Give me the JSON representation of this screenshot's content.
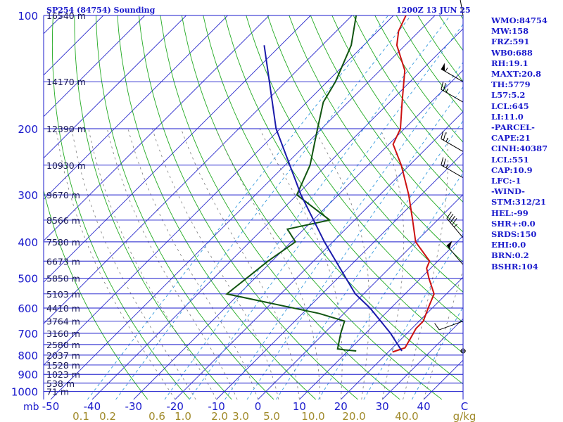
{
  "header": {
    "station": "SP254 (84754) Sounding",
    "time": "1200Z 13 JUN 25"
  },
  "indices": [
    "WMO:84754",
    "MW:158",
    "FRZ:591",
    "WB0:688",
    "RH:19.1",
    "MAXT:20.8",
    "TH:5779",
    "L57:5.2",
    "LCL:645",
    "LI:11.0",
    "-PARCEL-",
    "CAPE:21",
    "CINH:40387",
    "LCL:551",
    "CAP:10.9",
    "LFC:-1",
    "-WIND-",
    "STM:312/21",
    "HEL:-99",
    "SHR+:0.0",
    "SRDS:150",
    "EHI:0.0",
    "BRN:0.2",
    "BSHR:104"
  ],
  "colors": {
    "axis": "#1a1acc",
    "isobar": "#1a1acc",
    "isotherm": "#2a2acc",
    "dry_adiabat": "#22aa22",
    "moist_adiabat": "#7a7a7a",
    "mixing_ratio": "#3399dd",
    "temperature": "#cc1111",
    "dewpoint": "#115511",
    "parcel": "#1a1aaa",
    "mixing_label": "#a08a2a",
    "wind": "#000000"
  },
  "chart_data": {
    "type": "skew-t",
    "pressure_unit": "mb",
    "pressure_levels": [
      100,
      200,
      300,
      400,
      500,
      600,
      700,
      800,
      900,
      1000
    ],
    "height_labels": [
      {
        "p": 100,
        "text": "16540 m"
      },
      {
        "p": 150,
        "text": "14170 m"
      },
      {
        "p": 200,
        "text": "12390 m"
      },
      {
        "p": 250,
        "text": "10930 m"
      },
      {
        "p": 300,
        "text": "9670 m"
      },
      {
        "p": 350,
        "text": "8566 m"
      },
      {
        "p": 400,
        "text": "7580 m"
      },
      {
        "p": 450,
        "text": "6673 m"
      },
      {
        "p": 500,
        "text": "5850 m"
      },
      {
        "p": 550,
        "text": "5103 m"
      },
      {
        "p": 600,
        "text": "4410 m"
      },
      {
        "p": 650,
        "text": "3764 m"
      },
      {
        "p": 700,
        "text": "3160 m"
      },
      {
        "p": 750,
        "text": "2580 m"
      },
      {
        "p": 800,
        "text": "2037 m"
      },
      {
        "p": 850,
        "text": "1528 m"
      },
      {
        "p": 900,
        "text": "1023 m"
      },
      {
        "p": 950,
        "text": "538 m"
      },
      {
        "p": 1000,
        "text": "71 m"
      }
    ],
    "temperature_ticks": [
      -50,
      -40,
      -30,
      -20,
      -10,
      0,
      10,
      20,
      30,
      40
    ],
    "temperature_unit": "C",
    "mixing_ratio_ticks": [
      "0.1",
      "0.2",
      "0.6",
      "1.0",
      "2.0",
      "3.0",
      "5.0",
      "10.0",
      "20.0",
      "40.0"
    ],
    "mixing_ratio_unit": "g/kg",
    "temperature_profile": [
      {
        "p": 785,
        "t": 21
      },
      {
        "p": 765,
        "t": 23
      },
      {
        "p": 720,
        "t": 22
      },
      {
        "p": 680,
        "t": 21
      },
      {
        "p": 650,
        "t": 21
      },
      {
        "p": 600,
        "t": 19
      },
      {
        "p": 550,
        "t": 17
      },
      {
        "p": 500,
        "t": 12
      },
      {
        "p": 470,
        "t": 9
      },
      {
        "p": 450,
        "t": 8
      },
      {
        "p": 400,
        "t": 0
      },
      {
        "p": 350,
        "t": -6
      },
      {
        "p": 300,
        "t": -13
      },
      {
        "p": 250,
        "t": -22
      },
      {
        "p": 220,
        "t": -29
      },
      {
        "p": 200,
        "t": -31
      },
      {
        "p": 170,
        "t": -37
      },
      {
        "p": 140,
        "t": -44
      },
      {
        "p": 120,
        "t": -52
      },
      {
        "p": 110,
        "t": -55
      },
      {
        "p": 100,
        "t": -57
      }
    ],
    "dewpoint_profile": [
      {
        "p": 780,
        "td": 12
      },
      {
        "p": 775,
        "td": 9
      },
      {
        "p": 770,
        "td": 7
      },
      {
        "p": 700,
        "td": 4
      },
      {
        "p": 650,
        "td": 2
      },
      {
        "p": 620,
        "td": -6
      },
      {
        "p": 550,
        "td": -33
      },
      {
        "p": 500,
        "td": -32
      },
      {
        "p": 450,
        "td": -31
      },
      {
        "p": 400,
        "td": -29
      },
      {
        "p": 370,
        "td": -34
      },
      {
        "p": 350,
        "td": -26
      },
      {
        "p": 300,
        "td": -40
      },
      {
        "p": 250,
        "td": -44
      },
      {
        "p": 200,
        "td": -51
      },
      {
        "p": 170,
        "td": -56
      },
      {
        "p": 150,
        "td": -58
      },
      {
        "p": 120,
        "td": -63
      },
      {
        "p": 100,
        "td": -69
      }
    ],
    "parcel_profile": [
      {
        "p": 780,
        "t": 23
      },
      {
        "p": 700,
        "t": 16
      },
      {
        "p": 600,
        "t": 5
      },
      {
        "p": 550,
        "t": -2
      },
      {
        "p": 500,
        "t": -8
      },
      {
        "p": 400,
        "t": -22
      },
      {
        "p": 300,
        "t": -39
      },
      {
        "p": 200,
        "t": -61
      },
      {
        "p": 120,
        "t": -84
      }
    ],
    "wind_barbs": [
      {
        "p": 780,
        "dir": 90,
        "speed": 0
      },
      {
        "p": 650,
        "dir": 250,
        "speed": 10
      },
      {
        "p": 460,
        "dir": 320,
        "speed": 50
      },
      {
        "p": 390,
        "dir": 320,
        "speed": 45
      },
      {
        "p": 270,
        "dir": 300,
        "speed": 25
      },
      {
        "p": 230,
        "dir": 300,
        "speed": 25
      },
      {
        "p": 170,
        "dir": 300,
        "speed": 25
      },
      {
        "p": 150,
        "dir": 300,
        "speed": 55
      },
      {
        "p": 100,
        "dir": 350,
        "speed": 15
      }
    ]
  }
}
